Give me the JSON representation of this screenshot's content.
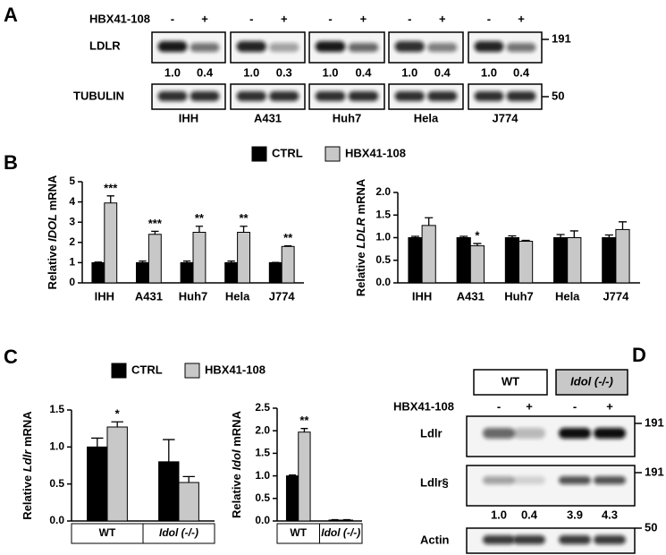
{
  "panel_labels": [
    "A",
    "B",
    "C",
    "D"
  ],
  "panel_a": {
    "treatment": "HBX41-108",
    "signs": [
      "-",
      "+"
    ],
    "rows": [
      "LDLR",
      "TUBULIN"
    ],
    "cell_lines": [
      "IHH",
      "A431",
      "Huh7",
      "Hela",
      "J774"
    ],
    "quantification": [
      [
        "1.0",
        "0.4"
      ],
      [
        "1.0",
        "0.3"
      ],
      [
        "1.0",
        "0.4"
      ],
      [
        "1.0",
        "0.4"
      ],
      [
        "1.0",
        "0.4"
      ]
    ],
    "markers": [
      "191",
      "50"
    ]
  },
  "panel_d": {
    "genotypes": [
      "WT",
      "Idol (-/-)"
    ],
    "treatment": "HBX41-108",
    "signs": [
      "-",
      "+",
      "-",
      "+"
    ],
    "rows": [
      "Ldlr",
      "Ldlr§",
      "Actin"
    ],
    "quantification": [
      "1.0",
      "0.4",
      "3.9",
      "4.3"
    ],
    "markers": [
      "191",
      "191",
      "50"
    ]
  },
  "chart_data": [
    {
      "type": "bar",
      "y_label": [
        "Relative ",
        "IDOL",
        " mRNA"
      ],
      "categories": [
        "IHH",
        "A431",
        "Huh7",
        "Hela",
        "J774"
      ],
      "series": [
        {
          "name": "CTRL",
          "color": "#000000",
          "values": [
            1,
            1,
            1,
            1,
            1
          ],
          "errors": [
            0.03,
            0.08,
            0.08,
            0.08,
            0.01
          ]
        },
        {
          "name": "HBX41-108",
          "color": "#c8c8c8",
          "values": [
            3.95,
            2.4,
            2.5,
            2.5,
            1.8
          ],
          "errors": [
            0.35,
            0.15,
            0.3,
            0.3,
            0.03
          ],
          "annotations": [
            "***",
            "***",
            "**",
            "**",
            "**"
          ]
        }
      ],
      "ylim": [
        0,
        5
      ],
      "yticks": [
        0,
        1,
        2,
        3,
        4,
        5
      ]
    },
    {
      "type": "bar",
      "y_label": [
        "Relative ",
        "LDLR",
        " mRNA"
      ],
      "categories": [
        "IHH",
        "A431",
        "Huh7",
        "Hela",
        "J774"
      ],
      "series": [
        {
          "name": "CTRL",
          "color": "#000000",
          "values": [
            1,
            1,
            1,
            1,
            1
          ],
          "errors": [
            0.03,
            0.03,
            0.04,
            0.07,
            0.06
          ]
        },
        {
          "name": "HBX41-108",
          "color": "#c8c8c8",
          "values": [
            1.27,
            0.82,
            0.92,
            1.0,
            1.18
          ],
          "errors": [
            0.17,
            0.05,
            0.02,
            0.15,
            0.17
          ],
          "annotations": [
            null,
            "*",
            null,
            null,
            null
          ]
        }
      ],
      "ylim": [
        0,
        2
      ],
      "yticks": [
        {
          "value": 0,
          "label": "0.0"
        },
        0.5,
        {
          "value": 1,
          "label": "1.0"
        },
        1.5,
        {
          "value": 2,
          "label": "2.0"
        }
      ]
    },
    {
      "type": "bar",
      "y_label": [
        "Relative ",
        "Ldlr",
        " mRNA"
      ],
      "categories": [
        "WT",
        "Idol (-/-)"
      ],
      "series": [
        {
          "name": "CTRL",
          "color": "#000000",
          "values": [
            1.0,
            0.8
          ],
          "errors": [
            0.12,
            0.3
          ]
        },
        {
          "name": "HBX41-108",
          "color": "#c8c8c8",
          "values": [
            1.27,
            0.52
          ],
          "errors": [
            0.07,
            0.08
          ],
          "annotations": [
            "*",
            null
          ]
        }
      ],
      "ylim": [
        0,
        1.5
      ],
      "yticks": [
        {
          "value": 0,
          "label": "0.0"
        },
        0.5,
        {
          "value": 1,
          "label": "1.0"
        },
        1.5
      ]
    },
    {
      "type": "bar",
      "y_label": [
        "Relative ",
        "Idol",
        " mRNA"
      ],
      "categories": [
        "WT",
        "Idol (-/-)"
      ],
      "series": [
        {
          "name": "CTRL",
          "color": "#000000",
          "values": [
            1.0,
            0.02
          ],
          "errors": [
            0.02,
            0.01
          ]
        },
        {
          "name": "HBX41-108",
          "color": "#c8c8c8",
          "values": [
            1.97,
            0.02
          ],
          "errors": [
            0.08,
            0.01
          ],
          "annotations": [
            "**",
            null
          ]
        }
      ],
      "ylim": [
        0,
        2.5
      ],
      "yticks": [
        {
          "value": 0,
          "label": "0.0"
        },
        0.5,
        {
          "value": 1,
          "label": "1.0"
        },
        1.5,
        {
          "value": 2,
          "label": "2.0"
        },
        2.5
      ]
    }
  ]
}
